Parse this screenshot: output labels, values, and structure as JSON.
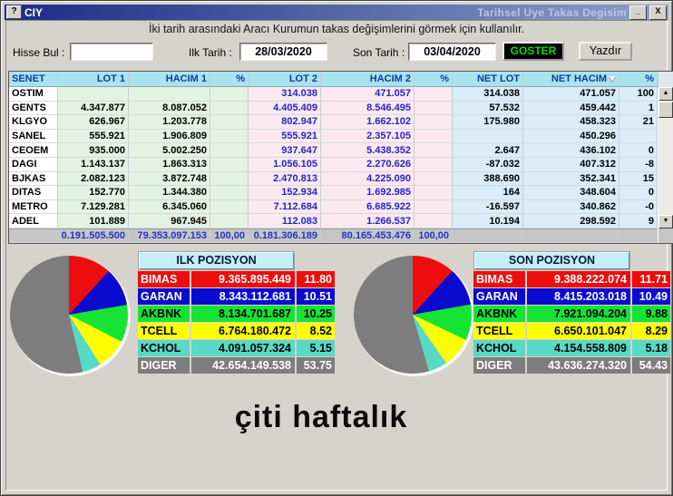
{
  "window": {
    "help_glyph": "?",
    "title_left": "CIY",
    "title_right": "Tarihsel Uye Takas Degisim",
    "minimize_glyph": "_",
    "close_glyph": "X",
    "subtitle": "İki tarih arasındaki  Aracı Kurumun takas değişimlerini görmek için kullanılır."
  },
  "form": {
    "hisse_label": "Hisse Bul :",
    "hisse_value": "",
    "ilk_label": "Ilk Tarih :",
    "ilk_value": "28/03/2020",
    "son_label": "Son Tarih :",
    "son_value": "03/04/2020",
    "goster_button": "GOSTER",
    "yazdir_button": "Yazdır"
  },
  "table": {
    "columns": [
      "SENET",
      "LOT 1",
      "HACIM 1",
      "%",
      "LOT 2",
      "HACIM 2",
      "%",
      "NET LOT",
      "NET HACIM",
      "%"
    ],
    "sort_column_index": 8,
    "rows": [
      [
        "OSTIM",
        "",
        "",
        "",
        "314.038",
        "471.057",
        "",
        "314.038",
        "471.057",
        "100"
      ],
      [
        "GENTS",
        "4.347.877",
        "8.087.052",
        "",
        "4.405.409",
        "8.546.495",
        "",
        "57.532",
        "459.442",
        "1"
      ],
      [
        "KLGYO",
        "626.967",
        "1.203.778",
        "",
        "802.947",
        "1.662.102",
        "",
        "175.980",
        "458.323",
        "21"
      ],
      [
        "SANEL",
        "555.921",
        "1.906.809",
        "",
        "555.921",
        "2.357.105",
        "",
        "",
        "450.296",
        ""
      ],
      [
        "CEOEM",
        "935.000",
        "5.002.250",
        "",
        "937.647",
        "5.438.352",
        "",
        "2.647",
        "436.102",
        "0"
      ],
      [
        "DAGI",
        "1.143.137",
        "1.863.313",
        "",
        "1.056.105",
        "2.270.626",
        "",
        "-87.032",
        "407.312",
        "-8"
      ],
      [
        "BJKAS",
        "2.082.123",
        "3.872.748",
        "",
        "2.470.813",
        "4.225.090",
        "",
        "388.690",
        "352.341",
        "15"
      ],
      [
        "DITAS",
        "152.770",
        "1.344.380",
        "",
        "152.934",
        "1.692.985",
        "",
        "164",
        "348.604",
        "0"
      ],
      [
        "METRO",
        "7.129.281",
        "6.345.060",
        "",
        "7.112.684",
        "6.685.922",
        "",
        "-16.597",
        "340.862",
        "-0"
      ],
      [
        "ADEL",
        "101.889",
        "967.945",
        "",
        "112.083",
        "1.266.537",
        "",
        "10.194",
        "298.592",
        "9"
      ]
    ],
    "totals": [
      "",
      "0.191.505.500",
      "79.353.097.153",
      "100,00",
      "0.181.306.189",
      "80.165.453.476",
      "100,00",
      "",
      "",
      ""
    ]
  },
  "row_colors": [
    {
      "bg": "#ee0d0d",
      "fg": "#ffffff"
    },
    {
      "bg": "#0b0bd0",
      "fg": "#ffffff"
    },
    {
      "bg": "#16e435",
      "fg": "#000000"
    },
    {
      "bg": "#ffff00",
      "fg": "#000000"
    },
    {
      "bg": "#58d9c5",
      "fg": "#000000"
    },
    {
      "bg": "#7d7d7d",
      "fg": "#ffffff"
    }
  ],
  "positions": {
    "ilk": {
      "title": "ILK POZISYON",
      "rows": [
        {
          "name": "BIMAS",
          "value": "9.365.895.449",
          "pct": "11.80"
        },
        {
          "name": "GARAN",
          "value": "8.343.112.681",
          "pct": "10.51"
        },
        {
          "name": "AKBNK",
          "value": "8.134.701.687",
          "pct": "10.25"
        },
        {
          "name": "TCELL",
          "value": "6.764.180.472",
          "pct": "8.52"
        },
        {
          "name": "KCHOL",
          "value": "4.091.057.324",
          "pct": "5.15"
        },
        {
          "name": "DIGER",
          "value": "42.654.149.538",
          "pct": "53.75"
        }
      ]
    },
    "son": {
      "title": "SON POZISYON",
      "rows": [
        {
          "name": "BIMAS",
          "value": "9.388.222.074",
          "pct": "11.71"
        },
        {
          "name": "GARAN",
          "value": "8.415.203.018",
          "pct": "10.49"
        },
        {
          "name": "AKBNK",
          "value": "7.921.094.204",
          "pct": "9.88"
        },
        {
          "name": "TCELL",
          "value": "6.650.101.047",
          "pct": "8.29"
        },
        {
          "name": "KCHOL",
          "value": "4.154.558.809",
          "pct": "5.18"
        },
        {
          "name": "DIGER",
          "value": "43.636.274.320",
          "pct": "54.43"
        }
      ]
    }
  },
  "footer_text": "çiti haftalık",
  "chart_data": [
    {
      "type": "pie",
      "title": "ILK POZISYON",
      "labels": [
        "BIMAS",
        "GARAN",
        "AKBNK",
        "TCELL",
        "KCHOL",
        "DIGER"
      ],
      "values": [
        11.8,
        10.51,
        10.25,
        8.52,
        5.15,
        53.75
      ],
      "amounts": [
        "9.365.895.449",
        "8.343.112.681",
        "8.134.701.687",
        "6.764.180.472",
        "4.091.057.324",
        "42.654.149.538"
      ],
      "colors": [
        "#ee0d0d",
        "#0b0bd0",
        "#16e435",
        "#ffff00",
        "#58d9c5",
        "#7d7d7d"
      ],
      "legend_position": "right-table",
      "unit": "percent"
    },
    {
      "type": "pie",
      "title": "SON POZISYON",
      "labels": [
        "BIMAS",
        "GARAN",
        "AKBNK",
        "TCELL",
        "KCHOL",
        "DIGER"
      ],
      "values": [
        11.71,
        10.49,
        9.88,
        8.29,
        5.18,
        54.43
      ],
      "amounts": [
        "9.388.222.074",
        "8.415.203.018",
        "7.921.094.204",
        "6.650.101.047",
        "4.154.558.809",
        "43.636.274.320"
      ],
      "colors": [
        "#ee0d0d",
        "#0b0bd0",
        "#16e435",
        "#ffff00",
        "#58d9c5",
        "#7d7d7d"
      ],
      "legend_position": "right-table",
      "unit": "percent"
    }
  ]
}
